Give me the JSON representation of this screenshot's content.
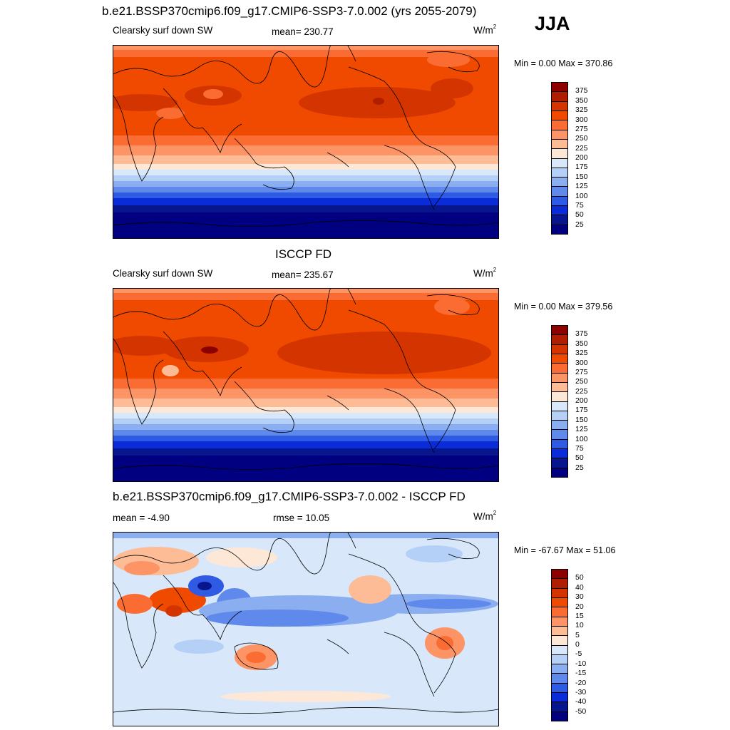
{
  "season": "JJA",
  "panels": [
    {
      "title": "b.e21.BSSP370cmip6.f09_g17.CMIP6-SSP3-7.0.002 (yrs 2055-2079)",
      "left_label": "Clearsky surf down SW",
      "center_label": "mean= 230.77",
      "units_base": "W/m",
      "units_exp": "2",
      "minmax": "Min =   0.00 Max = 370.86",
      "levels": [
        "375",
        "350",
        "325",
        "300",
        "275",
        "250",
        "225",
        "200",
        "175",
        "150",
        "125",
        "100",
        "75",
        "50",
        "25"
      ],
      "colors": [
        "#8c0000",
        "#b01e00",
        "#d43500",
        "#f04a00",
        "#fa6c32",
        "#fc9466",
        "#fdbc96",
        "#fde7d7",
        "#d8e8fa",
        "#b4d0f7",
        "#8aaeef",
        "#5f89ea",
        "#2e5ae4",
        "#0a2cd8",
        "#08168e",
        "#000080"
      ]
    },
    {
      "title": "ISCCP FD",
      "left_label": "Clearsky surf down SW",
      "center_label": "mean= 235.67",
      "units_base": "W/m",
      "units_exp": "2",
      "minmax": "Min =   0.00 Max = 379.56",
      "levels": [
        "375",
        "350",
        "325",
        "300",
        "275",
        "250",
        "225",
        "200",
        "175",
        "150",
        "125",
        "100",
        "75",
        "50",
        "25"
      ],
      "colors": [
        "#8c0000",
        "#b01e00",
        "#d43500",
        "#f04a00",
        "#fa6c32",
        "#fc9466",
        "#fdbc96",
        "#fde7d7",
        "#d8e8fa",
        "#b4d0f7",
        "#8aaeef",
        "#5f89ea",
        "#2e5ae4",
        "#0a2cd8",
        "#08168e",
        "#000080"
      ]
    },
    {
      "title": "b.e21.BSSP370cmip6.f09_g17.CMIP6-SSP3-7.0.002 - ISCCP FD",
      "left_label": "mean =  -4.90",
      "center_label": "rmse =  10.05",
      "units_base": "W/m",
      "units_exp": "2",
      "minmax": "Min = -67.67 Max =  51.06",
      "levels": [
        "50",
        "40",
        "30",
        "20",
        "15",
        "10",
        "5",
        "0",
        "-5",
        "-10",
        "-15",
        "-20",
        "-30",
        "-40",
        "-50"
      ],
      "colors": [
        "#8c0000",
        "#b01e00",
        "#d43500",
        "#f04a00",
        "#fa6c32",
        "#fc9466",
        "#fdbc96",
        "#fde7d7",
        "#d8e8fa",
        "#b4d0f7",
        "#8aaeef",
        "#5f89ea",
        "#2e5ae4",
        "#0a2cd8",
        "#08168e",
        "#000080"
      ]
    }
  ]
}
